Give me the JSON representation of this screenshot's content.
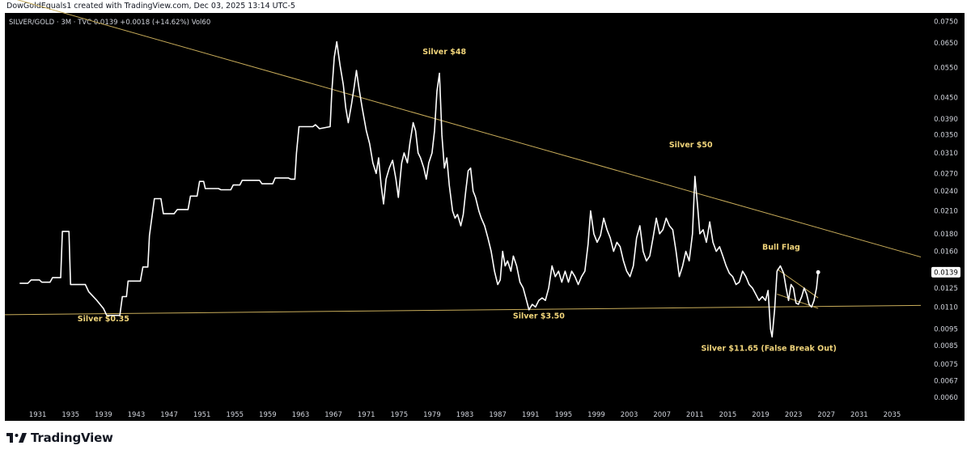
{
  "header": {
    "credit": "DowGoldEquals1 created with TradingView.com, Dec 03, 2025 13:14 UTC-5"
  },
  "symbol_bar": {
    "text": "SILVER/GOLD · 3M · TVC  0.0139  +0.0018 (+14.62%)  Vol60"
  },
  "footer": {
    "brand": "TradingView",
    "logo_icon": "tradingview-logo-icon"
  },
  "colors": {
    "background": "#000000",
    "price_line": "#ffffff",
    "trend_line": "#c9ad5a",
    "annotation": "#f0d47a",
    "axis_text": "#d1d4dc",
    "last_price_box": "#ffffff"
  },
  "chart_data": {
    "type": "line",
    "scale": "log",
    "grid": false,
    "legend": "none",
    "ylim": [
      0.0058,
      0.0795
    ],
    "xlim": [
      1927.0,
      2038.5
    ],
    "x_ticks": [
      "1931",
      "1935",
      "1939",
      "1943",
      "1947",
      "1951",
      "1955",
      "1959",
      "1963",
      "1967",
      "1971",
      "1975",
      "1979",
      "1983",
      "1987",
      "1991",
      "1995",
      "1999",
      "2003",
      "2007",
      "2011",
      "2015",
      "2019",
      "2023",
      "2027",
      "2031",
      "2035"
    ],
    "y_ticks": [
      "0.0750",
      "0.0650",
      "0.0550",
      "0.0450",
      "0.0390",
      "0.0350",
      "0.0310",
      "0.0270",
      "0.0240",
      "0.0210",
      "0.0180",
      "0.0160",
      "0.0139",
      "0.0125",
      "0.0110",
      "0.0095",
      "0.0085",
      "0.0075",
      "0.0067",
      "0.0060"
    ],
    "last_price": "0.0139",
    "series": [
      {
        "points": [
          [
            1928.8,
            0.0129
          ],
          [
            1929.8,
            0.0129
          ],
          [
            1930.2,
            0.0132
          ],
          [
            1931.2,
            0.0132
          ],
          [
            1931.5,
            0.013
          ],
          [
            1932.5,
            0.013
          ],
          [
            1932.8,
            0.0134
          ],
          [
            1933.8,
            0.0134
          ],
          [
            1934.0,
            0.0183
          ],
          [
            1934.8,
            0.0183
          ],
          [
            1935.0,
            0.0128
          ],
          [
            1936.8,
            0.0128
          ],
          [
            1937.2,
            0.0122
          ],
          [
            1938.2,
            0.0115
          ],
          [
            1939.0,
            0.0109
          ],
          [
            1939.4,
            0.0104
          ],
          [
            1941.0,
            0.0104
          ],
          [
            1941.3,
            0.0118
          ],
          [
            1941.8,
            0.0118
          ],
          [
            1942.0,
            0.0131
          ],
          [
            1943.5,
            0.0131
          ],
          [
            1943.8,
            0.0144
          ],
          [
            1944.4,
            0.0144
          ],
          [
            1944.6,
            0.0178
          ],
          [
            1945.2,
            0.0228
          ],
          [
            1946.0,
            0.0228
          ],
          [
            1946.3,
            0.0206
          ],
          [
            1947.6,
            0.0206
          ],
          [
            1948.0,
            0.0212
          ],
          [
            1949.3,
            0.0212
          ],
          [
            1949.6,
            0.0232
          ],
          [
            1950.4,
            0.0232
          ],
          [
            1950.7,
            0.0256
          ],
          [
            1951.2,
            0.0256
          ],
          [
            1951.4,
            0.0244
          ],
          [
            1953.0,
            0.0244
          ],
          [
            1953.3,
            0.0242
          ],
          [
            1954.5,
            0.0242
          ],
          [
            1954.8,
            0.025
          ],
          [
            1955.6,
            0.025
          ],
          [
            1955.9,
            0.0258
          ],
          [
            1958.0,
            0.0258
          ],
          [
            1958.3,
            0.0252
          ],
          [
            1959.6,
            0.0252
          ],
          [
            1959.9,
            0.0262
          ],
          [
            1961.5,
            0.0262
          ],
          [
            1961.8,
            0.026
          ],
          [
            1962.3,
            0.026
          ],
          [
            1962.5,
            0.031
          ],
          [
            1962.8,
            0.037
          ],
          [
            1964.5,
            0.037
          ],
          [
            1964.8,
            0.0375
          ],
          [
            1965.3,
            0.0365
          ],
          [
            1966.6,
            0.037
          ],
          [
            1966.8,
            0.047
          ],
          [
            1967.1,
            0.059
          ],
          [
            1967.4,
            0.0655
          ],
          [
            1967.8,
            0.056
          ],
          [
            1968.2,
            0.049
          ],
          [
            1968.5,
            0.042
          ],
          [
            1968.8,
            0.038
          ],
          [
            1969.2,
            0.043
          ],
          [
            1969.5,
            0.048
          ],
          [
            1969.8,
            0.054
          ],
          [
            1970.1,
            0.048
          ],
          [
            1970.5,
            0.042
          ],
          [
            1971.0,
            0.036
          ],
          [
            1971.4,
            0.033
          ],
          [
            1971.8,
            0.029
          ],
          [
            1972.2,
            0.027
          ],
          [
            1972.5,
            0.03
          ],
          [
            1972.8,
            0.025
          ],
          [
            1973.1,
            0.022
          ],
          [
            1973.4,
            0.026
          ],
          [
            1973.8,
            0.028
          ],
          [
            1974.2,
            0.0295
          ],
          [
            1974.6,
            0.026
          ],
          [
            1974.9,
            0.023
          ],
          [
            1975.3,
            0.029
          ],
          [
            1975.6,
            0.031
          ],
          [
            1976.0,
            0.029
          ],
          [
            1976.3,
            0.033
          ],
          [
            1976.7,
            0.038
          ],
          [
            1977.0,
            0.036
          ],
          [
            1977.3,
            0.031
          ],
          [
            1977.6,
            0.03
          ],
          [
            1978.0,
            0.028
          ],
          [
            1978.3,
            0.026
          ],
          [
            1978.6,
            0.029
          ],
          [
            1979.0,
            0.031
          ],
          [
            1979.3,
            0.036
          ],
          [
            1979.6,
            0.047
          ],
          [
            1979.9,
            0.053
          ],
          [
            1980.2,
            0.035
          ],
          [
            1980.5,
            0.028
          ],
          [
            1980.8,
            0.03
          ],
          [
            1981.1,
            0.025
          ],
          [
            1981.5,
            0.021
          ],
          [
            1981.8,
            0.02
          ],
          [
            1982.1,
            0.0205
          ],
          [
            1982.5,
            0.019
          ],
          [
            1982.8,
            0.0205
          ],
          [
            1983.1,
            0.024
          ],
          [
            1983.4,
            0.0275
          ],
          [
            1983.7,
            0.028
          ],
          [
            1984.0,
            0.024
          ],
          [
            1984.3,
            0.023
          ],
          [
            1984.7,
            0.021
          ],
          [
            1985.0,
            0.02
          ],
          [
            1985.4,
            0.019
          ],
          [
            1985.8,
            0.0175
          ],
          [
            1986.2,
            0.016
          ],
          [
            1986.6,
            0.014
          ],
          [
            1987.0,
            0.0128
          ],
          [
            1987.3,
            0.0132
          ],
          [
            1987.6,
            0.016
          ],
          [
            1987.9,
            0.0145
          ],
          [
            1988.2,
            0.015
          ],
          [
            1988.6,
            0.014
          ],
          [
            1988.9,
            0.0155
          ],
          [
            1989.3,
            0.0145
          ],
          [
            1989.7,
            0.013
          ],
          [
            1990.1,
            0.0125
          ],
          [
            1990.5,
            0.0115
          ],
          [
            1990.8,
            0.0108
          ],
          [
            1991.2,
            0.0112
          ],
          [
            1991.6,
            0.011
          ],
          [
            1992.0,
            0.0115
          ],
          [
            1992.4,
            0.0117
          ],
          [
            1992.8,
            0.0115
          ],
          [
            1993.2,
            0.0125
          ],
          [
            1993.6,
            0.0145
          ],
          [
            1994.0,
            0.0135
          ],
          [
            1994.4,
            0.014
          ],
          [
            1994.8,
            0.013
          ],
          [
            1995.2,
            0.014
          ],
          [
            1995.6,
            0.013
          ],
          [
            1996.0,
            0.014
          ],
          [
            1996.4,
            0.0135
          ],
          [
            1996.8,
            0.0128
          ],
          [
            1997.2,
            0.0135
          ],
          [
            1997.6,
            0.014
          ],
          [
            1998.0,
            0.0168
          ],
          [
            1998.3,
            0.021
          ],
          [
            1998.7,
            0.018
          ],
          [
            1999.1,
            0.017
          ],
          [
            1999.5,
            0.0178
          ],
          [
            1999.9,
            0.02
          ],
          [
            2000.3,
            0.0185
          ],
          [
            2000.7,
            0.0175
          ],
          [
            2001.1,
            0.016
          ],
          [
            2001.5,
            0.017
          ],
          [
            2001.9,
            0.0165
          ],
          [
            2002.3,
            0.015
          ],
          [
            2002.7,
            0.014
          ],
          [
            2003.1,
            0.0135
          ],
          [
            2003.5,
            0.0145
          ],
          [
            2003.9,
            0.0175
          ],
          [
            2004.3,
            0.019
          ],
          [
            2004.7,
            0.016
          ],
          [
            2005.1,
            0.015
          ],
          [
            2005.5,
            0.0155
          ],
          [
            2005.9,
            0.0175
          ],
          [
            2006.3,
            0.02
          ],
          [
            2006.7,
            0.018
          ],
          [
            2007.1,
            0.0185
          ],
          [
            2007.5,
            0.02
          ],
          [
            2007.9,
            0.019
          ],
          [
            2008.3,
            0.0185
          ],
          [
            2008.7,
            0.016
          ],
          [
            2009.1,
            0.0135
          ],
          [
            2009.5,
            0.0145
          ],
          [
            2009.9,
            0.016
          ],
          [
            2010.3,
            0.015
          ],
          [
            2010.7,
            0.018
          ],
          [
            2011.0,
            0.0265
          ],
          [
            2011.3,
            0.022
          ],
          [
            2011.6,
            0.018
          ],
          [
            2012.0,
            0.0185
          ],
          [
            2012.4,
            0.017
          ],
          [
            2012.8,
            0.0195
          ],
          [
            2013.2,
            0.017
          ],
          [
            2013.6,
            0.016
          ],
          [
            2014.0,
            0.0165
          ],
          [
            2014.4,
            0.0155
          ],
          [
            2014.8,
            0.0145
          ],
          [
            2015.2,
            0.0138
          ],
          [
            2015.6,
            0.0135
          ],
          [
            2016.0,
            0.0128
          ],
          [
            2016.4,
            0.013
          ],
          [
            2016.8,
            0.014
          ],
          [
            2017.2,
            0.0135
          ],
          [
            2017.6,
            0.0128
          ],
          [
            2018.0,
            0.0125
          ],
          [
            2018.4,
            0.012
          ],
          [
            2018.8,
            0.0115
          ],
          [
            2019.2,
            0.0118
          ],
          [
            2019.6,
            0.0115
          ],
          [
            2019.9,
            0.0123
          ],
          [
            2020.2,
            0.0095
          ],
          [
            2020.4,
            0.009
          ],
          [
            2020.7,
            0.0108
          ],
          [
            2021.0,
            0.014
          ],
          [
            2021.4,
            0.0145
          ],
          [
            2021.8,
            0.0138
          ],
          [
            2022.1,
            0.0125
          ],
          [
            2022.4,
            0.0115
          ],
          [
            2022.7,
            0.0128
          ],
          [
            2023.0,
            0.0125
          ],
          [
            2023.3,
            0.0113
          ],
          [
            2023.6,
            0.0112
          ],
          [
            2024.0,
            0.0118
          ],
          [
            2024.3,
            0.0125
          ],
          [
            2024.6,
            0.012
          ],
          [
            2024.9,
            0.0112
          ],
          [
            2025.2,
            0.011
          ],
          [
            2025.5,
            0.0115
          ],
          [
            2025.8,
            0.0125
          ],
          [
            2026.0,
            0.0139
          ]
        ]
      }
    ],
    "trend_lines": [
      {
        "from": [
          1927.0,
          0.089
        ],
        "to": [
          2038.5,
          0.0154
        ]
      },
      {
        "from": [
          1927.0,
          0.01045
        ],
        "to": [
          2038.5,
          0.01112
        ]
      }
    ],
    "flag_lines": [
      {
        "from": [
          2021.0,
          0.0142
        ],
        "to": [
          2026.0,
          0.0117
        ]
      },
      {
        "from": [
          2021.0,
          0.012
        ],
        "to": [
          2026.0,
          0.0109
        ]
      }
    ],
    "annotations": [
      {
        "text": "Silver $48",
        "x": 1980.5,
        "y": 0.0602
      },
      {
        "text": "Silver $50",
        "x": 2010.5,
        "y": 0.0322
      },
      {
        "text": "Bull Flag",
        "x": 2021.5,
        "y": 0.0162
      },
      {
        "text": "Silver $0.35",
        "x": 1939.0,
        "y": 0.01
      },
      {
        "text": "Silver $3.50",
        "x": 1992.0,
        "y": 0.0102
      },
      {
        "text": "Silver $11.65 (False Break Out)",
        "x": 2020.0,
        "y": 0.0082
      }
    ]
  }
}
